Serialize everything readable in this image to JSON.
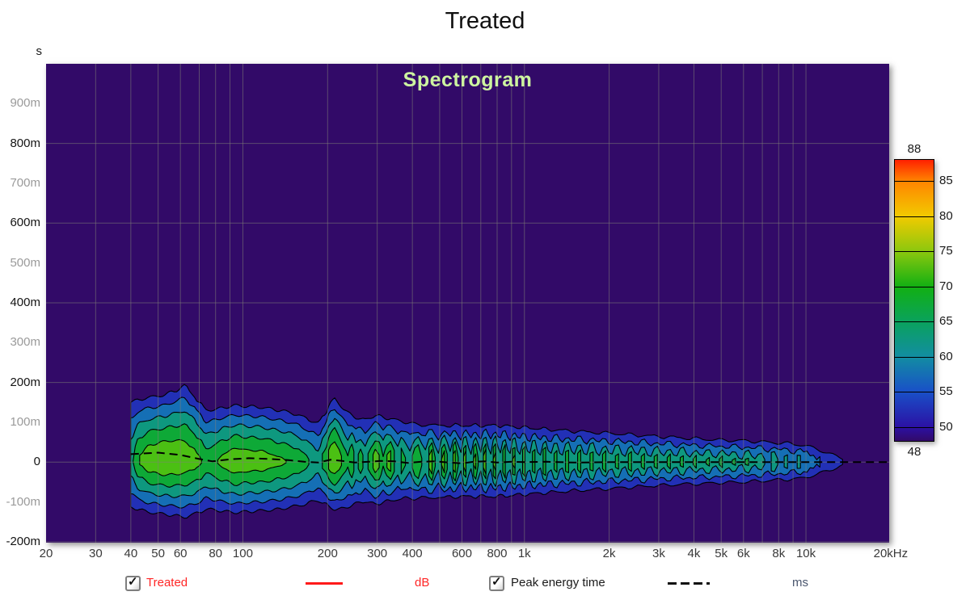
{
  "title": "Treated",
  "plot_heading": "Spectrogram",
  "axes": {
    "y_unit": "s",
    "y_ticks": [
      {
        "label": "900m",
        "t": 900,
        "minor": true
      },
      {
        "label": "800m",
        "t": 800,
        "minor": false
      },
      {
        "label": "700m",
        "t": 700,
        "minor": true
      },
      {
        "label": "600m",
        "t": 600,
        "minor": false
      },
      {
        "label": "500m",
        "t": 500,
        "minor": true
      },
      {
        "label": "400m",
        "t": 400,
        "minor": false
      },
      {
        "label": "300m",
        "t": 300,
        "minor": true
      },
      {
        "label": "200m",
        "t": 200,
        "minor": false
      },
      {
        "label": "100m",
        "t": 100,
        "minor": true
      },
      {
        "label": "0",
        "t": 0,
        "minor": false
      },
      {
        "label": "-100m",
        "t": -100,
        "minor": true
      },
      {
        "label": "-200m",
        "t": -200,
        "minor": false
      }
    ],
    "x_ticks": [
      {
        "label": "20",
        "f": 20
      },
      {
        "label": "30",
        "f": 30
      },
      {
        "label": "40",
        "f": 40
      },
      {
        "label": "50",
        "f": 50
      },
      {
        "label": "60",
        "f": 60
      },
      {
        "label": "80",
        "f": 80
      },
      {
        "label": "100",
        "f": 100
      },
      {
        "label": "200",
        "f": 200
      },
      {
        "label": "300",
        "f": 300
      },
      {
        "label": "400",
        "f": 400
      },
      {
        "label": "600",
        "f": 600
      },
      {
        "label": "800",
        "f": 800
      },
      {
        "label": "1k",
        "f": 1000
      },
      {
        "label": "2k",
        "f": 2000
      },
      {
        "label": "3k",
        "f": 3000
      },
      {
        "label": "4k",
        "f": 4000
      },
      {
        "label": "5k",
        "f": 5000
      },
      {
        "label": "6k",
        "f": 6000
      },
      {
        "label": "8k",
        "f": 8000
      },
      {
        "label": "10k",
        "f": 10000
      },
      {
        "label": "20kHz",
        "f": 20000
      }
    ],
    "h_gridlines_ms": [
      800,
      600,
      400,
      200,
      0,
      -200
    ],
    "v_gridlines_hz": [
      30,
      40,
      50,
      60,
      70,
      80,
      90,
      100,
      200,
      300,
      400,
      500,
      600,
      700,
      800,
      900,
      1000,
      2000,
      3000,
      4000,
      5000,
      6000,
      7000,
      8000,
      9000,
      10000
    ]
  },
  "colorbar": {
    "max_label": "88",
    "min_label": "48",
    "tick_values": [
      85,
      80,
      75,
      70,
      65,
      60,
      55,
      50
    ],
    "stops": [
      {
        "db": 88,
        "color": "#ff2000"
      },
      {
        "db": 85,
        "color": "#ff8400"
      },
      {
        "db": 80,
        "color": "#f2ca00"
      },
      {
        "db": 75,
        "color": "#8cc80e"
      },
      {
        "db": 70,
        "color": "#12b012"
      },
      {
        "db": 65,
        "color": "#0aa25c"
      },
      {
        "db": 60,
        "color": "#128da2"
      },
      {
        "db": 55,
        "color": "#1950c8"
      },
      {
        "db": 50,
        "color": "#2b11a4"
      },
      {
        "db": 48,
        "color": "#320a68"
      }
    ]
  },
  "legend": {
    "trace1": {
      "label": "Treated",
      "unit": "dB",
      "checked": true
    },
    "trace2": {
      "label": "Peak energy time",
      "unit": "ms",
      "checked": true
    }
  },
  "chart_data": {
    "type": "heatmap",
    "title": "Spectrogram",
    "x_axis": {
      "label": "Hz",
      "scale": "log",
      "min": 20,
      "max": 20000
    },
    "y_axis": {
      "label": "s",
      "min_ms": -203,
      "max_ms": 1000
    },
    "z_axis": {
      "label": "dB",
      "min": 48,
      "max": 88
    },
    "levels_db": [
      50,
      55,
      60,
      65,
      70,
      75
    ],
    "level_fills": [
      "#2230b6",
      "#156fb5",
      "#0e987f",
      "#0ea937",
      "#4bc013",
      "#9ed13a"
    ],
    "background": "#320a68",
    "samples_format": [
      "freq_hz",
      "extent_up_ms",
      "extent_down_ms",
      "peak_db"
    ],
    "samples": [
      [
        40,
        150,
        112,
        64
      ],
      [
        43,
        158,
        120,
        71
      ],
      [
        47,
        163,
        126,
        74
      ],
      [
        52,
        168,
        130,
        75
      ],
      [
        57,
        178,
        134,
        75
      ],
      [
        62,
        192,
        138,
        74
      ],
      [
        66,
        172,
        132,
        73
      ],
      [
        70,
        150,
        126,
        71
      ],
      [
        74,
        131,
        118,
        68
      ],
      [
        80,
        132,
        120,
        70
      ],
      [
        86,
        138,
        124,
        72
      ],
      [
        95,
        142,
        126,
        74
      ],
      [
        105,
        140,
        124,
        73
      ],
      [
        115,
        138,
        122,
        73
      ],
      [
        125,
        134,
        120,
        72
      ],
      [
        135,
        130,
        118,
        71
      ],
      [
        145,
        126,
        114,
        70
      ],
      [
        155,
        120,
        110,
        69
      ],
      [
        165,
        112,
        106,
        67
      ],
      [
        175,
        104,
        100,
        65
      ],
      [
        185,
        98,
        96,
        63
      ],
      [
        195,
        120,
        104,
        68
      ],
      [
        205,
        150,
        114,
        74
      ],
      [
        212,
        158,
        118,
        76
      ],
      [
        220,
        146,
        118,
        73
      ],
      [
        228,
        134,
        116,
        69
      ],
      [
        236,
        124,
        112,
        66
      ],
      [
        244,
        118,
        108,
        71
      ],
      [
        252,
        112,
        104,
        65
      ],
      [
        262,
        108,
        100,
        69
      ],
      [
        272,
        106,
        98,
        64
      ],
      [
        285,
        112,
        102,
        70
      ],
      [
        295,
        118,
        106,
        74
      ],
      [
        305,
        116,
        104,
        72
      ],
      [
        315,
        112,
        100,
        66
      ],
      [
        325,
        110,
        98,
        72
      ],
      [
        335,
        108,
        96,
        74
      ],
      [
        345,
        106,
        94,
        68
      ],
      [
        355,
        104,
        92,
        64
      ],
      [
        365,
        102,
        92,
        70
      ],
      [
        378,
        100,
        90,
        66
      ],
      [
        392,
        98,
        90,
        63
      ],
      [
        408,
        96,
        92,
        70
      ],
      [
        420,
        94,
        90,
        74
      ],
      [
        432,
        92,
        88,
        66
      ],
      [
        445,
        94,
        90,
        63
      ],
      [
        458,
        96,
        92,
        72
      ],
      [
        470,
        94,
        90,
        76
      ],
      [
        482,
        92,
        88,
        66
      ],
      [
        495,
        90,
        86,
        62
      ],
      [
        508,
        92,
        88,
        71
      ],
      [
        520,
        94,
        90,
        76
      ],
      [
        532,
        92,
        88,
        68
      ],
      [
        545,
        90,
        86,
        63
      ],
      [
        558,
        92,
        88,
        73
      ],
      [
        568,
        94,
        88,
        76
      ],
      [
        582,
        92,
        86,
        66
      ],
      [
        595,
        90,
        84,
        62
      ],
      [
        608,
        92,
        86,
        72
      ],
      [
        620,
        94,
        88,
        75
      ],
      [
        633,
        92,
        86,
        65
      ],
      [
        646,
        90,
        84,
        62
      ],
      [
        660,
        92,
        86,
        71
      ],
      [
        672,
        94,
        88,
        74
      ],
      [
        685,
        92,
        86,
        66
      ],
      [
        700,
        90,
        84,
        62
      ],
      [
        715,
        92,
        86,
        72
      ],
      [
        730,
        94,
        88,
        76
      ],
      [
        745,
        92,
        86,
        65
      ],
      [
        760,
        90,
        84,
        62
      ],
      [
        775,
        92,
        86,
        71
      ],
      [
        790,
        94,
        88,
        75
      ],
      [
        806,
        92,
        86,
        64
      ],
      [
        822,
        90,
        84,
        62
      ],
      [
        838,
        92,
        84,
        70
      ],
      [
        855,
        92,
        86,
        74
      ],
      [
        872,
        90,
        84,
        64
      ],
      [
        890,
        88,
        82,
        62
      ],
      [
        908,
        90,
        84,
        71
      ],
      [
        926,
        90,
        84,
        73
      ],
      [
        945,
        88,
        82,
        63
      ],
      [
        964,
        86,
        80,
        62
      ],
      [
        985,
        88,
        82,
        70
      ],
      [
        1005,
        88,
        82,
        72
      ],
      [
        1025,
        86,
        80,
        63
      ],
      [
        1046,
        84,
        78,
        62
      ],
      [
        1068,
        86,
        80,
        70
      ],
      [
        1090,
        86,
        80,
        72
      ],
      [
        1115,
        84,
        78,
        63
      ],
      [
        1140,
        82,
        76,
        62
      ],
      [
        1165,
        84,
        78,
        70
      ],
      [
        1190,
        84,
        78,
        72
      ],
      [
        1215,
        82,
        76,
        63
      ],
      [
        1245,
        80,
        74,
        62
      ],
      [
        1275,
        82,
        76,
        69
      ],
      [
        1305,
        82,
        76,
        71
      ],
      [
        1335,
        80,
        74,
        63
      ],
      [
        1365,
        78,
        72,
        62
      ],
      [
        1400,
        80,
        74,
        69
      ],
      [
        1435,
        80,
        74,
        71
      ],
      [
        1470,
        78,
        72,
        63
      ],
      [
        1505,
        76,
        70,
        62
      ],
      [
        1545,
        78,
        72,
        69
      ],
      [
        1585,
        78,
        72,
        71
      ],
      [
        1625,
        76,
        70,
        63
      ],
      [
        1665,
        74,
        68,
        62
      ],
      [
        1710,
        76,
        70,
        69
      ],
      [
        1755,
        76,
        70,
        71
      ],
      [
        1800,
        74,
        68,
        63
      ],
      [
        1845,
        72,
        66,
        62
      ],
      [
        1895,
        74,
        68,
        68
      ],
      [
        1945,
        74,
        68,
        70
      ],
      [
        1995,
        72,
        66,
        63
      ],
      [
        2050,
        72,
        66,
        62
      ],
      [
        2105,
        72,
        66,
        68
      ],
      [
        2160,
        72,
        66,
        70
      ],
      [
        2220,
        70,
        64,
        63
      ],
      [
        2280,
        68,
        62,
        62
      ],
      [
        2340,
        70,
        64,
        68
      ],
      [
        2400,
        70,
        64,
        70
      ],
      [
        2465,
        68,
        62,
        63
      ],
      [
        2530,
        66,
        60,
        62
      ],
      [
        2600,
        68,
        62,
        68
      ],
      [
        2670,
        68,
        62,
        70
      ],
      [
        2740,
        66,
        60,
        63
      ],
      [
        2815,
        64,
        58,
        62
      ],
      [
        2890,
        66,
        60,
        67
      ],
      [
        2965,
        66,
        60,
        69
      ],
      [
        3045,
        64,
        58,
        63
      ],
      [
        3130,
        62,
        57,
        62
      ],
      [
        3215,
        64,
        58,
        67
      ],
      [
        3300,
        64,
        58,
        69
      ],
      [
        3390,
        62,
        56,
        63
      ],
      [
        3480,
        60,
        55,
        62
      ],
      [
        3575,
        62,
        56,
        67
      ],
      [
        3670,
        62,
        56,
        69
      ],
      [
        3770,
        60,
        55,
        63
      ],
      [
        3870,
        58,
        54,
        62
      ],
      [
        3975,
        60,
        55,
        66
      ],
      [
        4080,
        60,
        55,
        68
      ],
      [
        4190,
        58,
        54,
        63
      ],
      [
        4300,
        57,
        53,
        62
      ],
      [
        4420,
        58,
        54,
        66
      ],
      [
        4540,
        58,
        54,
        68
      ],
      [
        4660,
        56,
        52,
        63
      ],
      [
        4790,
        55,
        51,
        62
      ],
      [
        4920,
        56,
        52,
        66
      ],
      [
        5050,
        56,
        52,
        68
      ],
      [
        5190,
        55,
        51,
        63
      ],
      [
        5330,
        54,
        50,
        62
      ],
      [
        5470,
        55,
        51,
        66
      ],
      [
        5620,
        55,
        51,
        67
      ],
      [
        5770,
        54,
        50,
        62
      ],
      [
        5930,
        53,
        49,
        61
      ],
      [
        6090,
        54,
        50,
        66
      ],
      [
        6250,
        54,
        50,
        67
      ],
      [
        6420,
        52,
        48,
        62
      ],
      [
        6590,
        51,
        47,
        61
      ],
      [
        6770,
        52,
        48,
        65
      ],
      [
        6950,
        52,
        48,
        67
      ],
      [
        7140,
        50,
        46,
        61
      ],
      [
        7330,
        49,
        45,
        60
      ],
      [
        7530,
        50,
        46,
        65
      ],
      [
        7730,
        50,
        46,
        66
      ],
      [
        7940,
        48,
        44,
        61
      ],
      [
        8150,
        47,
        43,
        60
      ],
      [
        8370,
        48,
        44,
        64
      ],
      [
        8600,
        48,
        44,
        65
      ],
      [
        8830,
        46,
        42,
        60
      ],
      [
        9070,
        44,
        41,
        59
      ],
      [
        9310,
        45,
        42,
        63
      ],
      [
        9560,
        44,
        41,
        64
      ],
      [
        9820,
        42,
        39,
        59
      ],
      [
        10080,
        40,
        37,
        62
      ],
      [
        10350,
        38,
        35,
        58
      ],
      [
        10630,
        36,
        33,
        60
      ],
      [
        10920,
        33,
        31,
        56
      ],
      [
        11210,
        30,
        28,
        58
      ],
      [
        11510,
        27,
        25,
        55
      ],
      [
        11820,
        24,
        22,
        56
      ],
      [
        12140,
        21,
        20,
        54
      ],
      [
        12470,
        18,
        17,
        53
      ],
      [
        12810,
        15,
        14,
        52
      ],
      [
        13150,
        12,
        11,
        51
      ],
      [
        13500,
        10,
        9,
        50.5
      ],
      [
        13870,
        8,
        7,
        50
      ],
      [
        14240,
        6,
        6,
        49.5
      ],
      [
        14620,
        5,
        5,
        49
      ],
      [
        15020,
        4,
        4,
        48.7
      ],
      [
        15420,
        3,
        3,
        48.4
      ],
      [
        15840,
        2,
        2,
        48.2
      ],
      [
        16260,
        0,
        0,
        48
      ]
    ],
    "peak_energy_time_ms": [
      [
        40,
        20
      ],
      [
        50,
        24
      ],
      [
        60,
        18
      ],
      [
        70,
        8
      ],
      [
        78,
        2
      ],
      [
        90,
        7
      ],
      [
        105,
        10
      ],
      [
        125,
        8
      ],
      [
        145,
        5
      ],
      [
        165,
        1
      ],
      [
        185,
        -1
      ],
      [
        205,
        6
      ],
      [
        225,
        3
      ],
      [
        250,
        -1
      ],
      [
        280,
        1
      ],
      [
        310,
        3
      ],
      [
        345,
        2
      ],
      [
        385,
        -2
      ],
      [
        430,
        1
      ],
      [
        480,
        2
      ],
      [
        540,
        -1
      ],
      [
        600,
        -3
      ],
      [
        660,
        1
      ],
      [
        730,
        2
      ],
      [
        800,
        -1
      ],
      [
        900,
        1
      ],
      [
        1000,
        0
      ],
      [
        1200,
        1
      ],
      [
        1500,
        -1
      ],
      [
        2000,
        0
      ],
      [
        3000,
        0
      ],
      [
        5000,
        0
      ],
      [
        8000,
        0
      ],
      [
        12000,
        0
      ],
      [
        20000,
        0
      ]
    ]
  }
}
